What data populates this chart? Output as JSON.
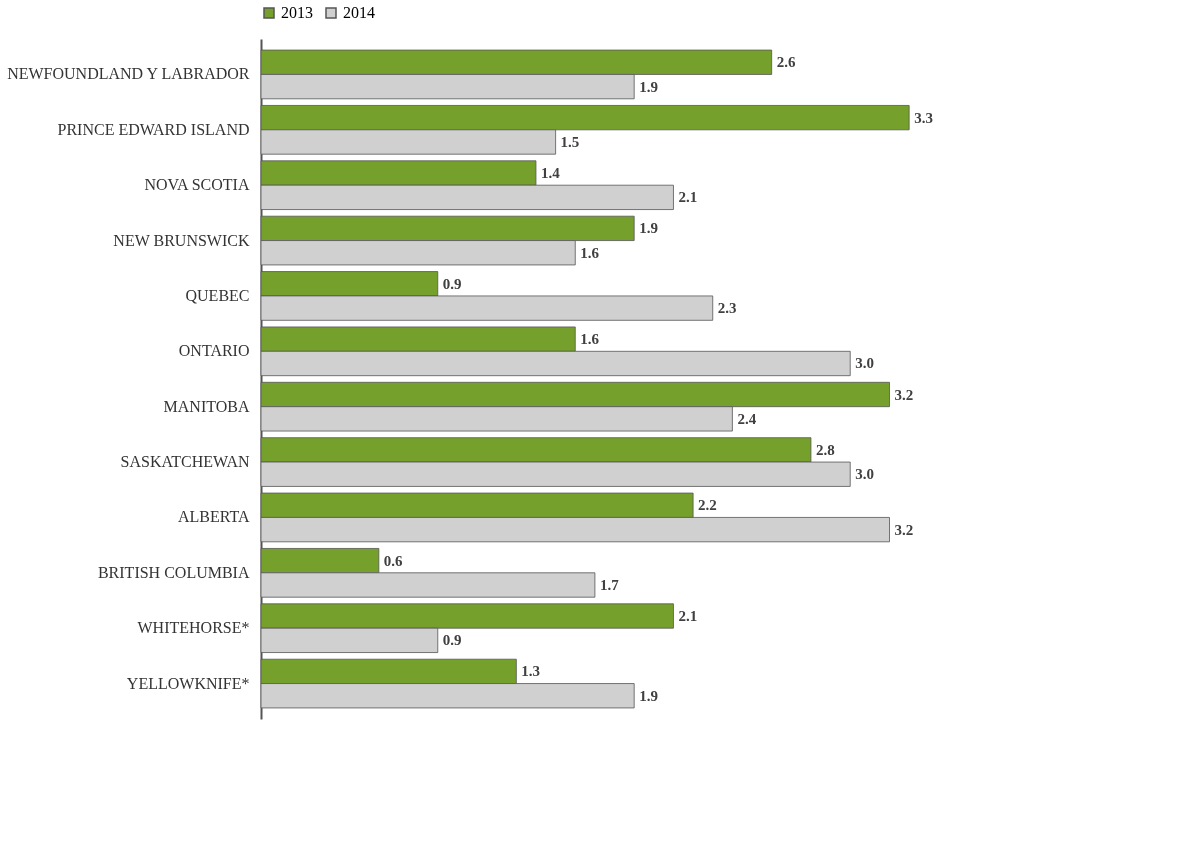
{
  "chart_data": {
    "type": "bar",
    "orientation": "horizontal",
    "legend": "top",
    "categories": [
      "NEWFOUNDLAND Y LABRADOR",
      "PRINCE EDWARD ISLAND",
      "NOVA SCOTIA",
      "NEW BRUNSWICK",
      "QUEBEC",
      "ONTARIO",
      "MANITOBA",
      "SASKATCHEWAN",
      "ALBERTA",
      "BRITISH COLUMBIA",
      "WHITEHORSE*",
      "YELLOWKNIFE*"
    ],
    "series": [
      {
        "name": "2013",
        "color": "#76a02c",
        "values": [
          2.6,
          3.3,
          1.4,
          1.9,
          0.9,
          1.6,
          3.2,
          2.8,
          2.2,
          0.6,
          2.1,
          1.3
        ],
        "value_labels": [
          "2.6",
          "3.3",
          "1.4",
          "1.9",
          "0.9",
          "1.6",
          "3.2",
          "2.8",
          "2.2",
          "0.6",
          "2.1",
          "1.3"
        ]
      },
      {
        "name": "2014",
        "color": "#d0d0d0",
        "values": [
          1.9,
          1.5,
          2.1,
          1.6,
          2.3,
          3.0,
          2.4,
          3.0,
          3.2,
          1.7,
          0.9,
          1.9
        ],
        "value_labels": [
          "1.9",
          "1.5",
          "2.1",
          "1.6",
          "2.3",
          "3.0",
          "2.4",
          "3.0",
          "3.2",
          "1.7",
          "0.9",
          "1.9"
        ]
      }
    ]
  }
}
